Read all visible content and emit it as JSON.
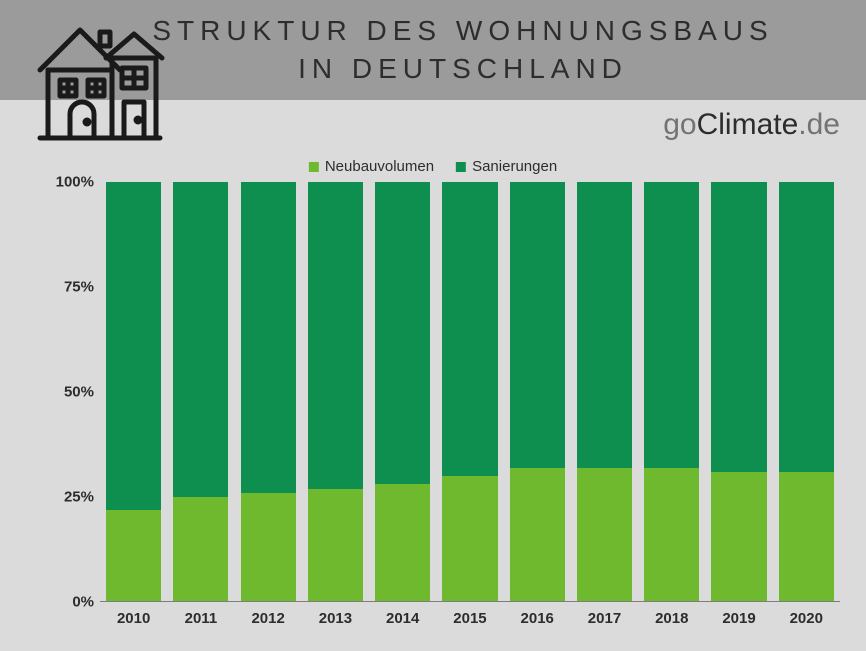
{
  "header": {
    "title_line1": "STRUKTUR DES WOHNUNGSBAUS",
    "title_line2": "IN DEUTSCHLAND"
  },
  "brand": {
    "go": "go",
    "climate": "Climate",
    "de": ".de"
  },
  "legend": {
    "series1": {
      "label": "Neubauvolumen",
      "color": "#6fb92e"
    },
    "series2": {
      "label": "Sanierungen",
      "color": "#0f8f4f"
    }
  },
  "chart": {
    "type": "stacked-bar",
    "background_color": "#dbdbdb",
    "ylim": [
      0,
      100
    ],
    "ytick_step": 25,
    "yticks": [
      "0%",
      "25%",
      "50%",
      "75%",
      "100%"
    ],
    "bar_width": 0.82,
    "axis_fontsize": 15,
    "axis_fontweight": "bold",
    "axis_color": "#2d2d2d",
    "categories": [
      "2010",
      "2011",
      "2012",
      "2013",
      "2014",
      "2015",
      "2016",
      "2017",
      "2018",
      "2019",
      "2020"
    ],
    "series": [
      {
        "name": "Neubauvolumen",
        "color": "#6fb92e",
        "values": [
          22,
          25,
          26,
          27,
          28,
          30,
          32,
          32,
          32,
          31,
          31
        ]
      },
      {
        "name": "Sanierungen",
        "color": "#0f8f4f",
        "values": [
          78,
          75,
          74,
          73,
          72,
          70,
          68,
          68,
          68,
          69,
          69
        ]
      }
    ]
  }
}
